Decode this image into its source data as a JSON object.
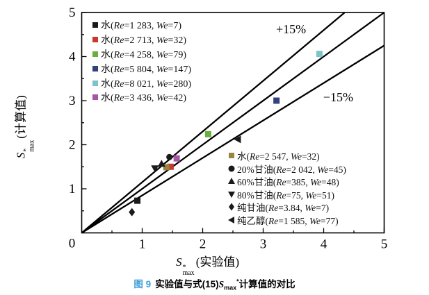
{
  "figure": {
    "caption": {
      "tag": "图 9",
      "tag_color": "#3f9ed8",
      "pre": "实验值与式(15)",
      "s_base": "S",
      "s_sub": "max",
      "s_sup": "*",
      "post": "计算值的对比"
    }
  },
  "chart_data": {
    "type": "scatter",
    "title": "",
    "xlabel": {
      "s_base": "S",
      "s_sup": "*",
      "s_sub": "max",
      "text": "(实验值)"
    },
    "ylabel": {
      "s_base": "S",
      "s_sup": "*",
      "s_sub": "max",
      "text": "(计算值)"
    },
    "xlim": [
      0,
      5
    ],
    "ylim": [
      0,
      5
    ],
    "x_ticks": [
      0,
      1,
      2,
      3,
      4,
      5
    ],
    "y_ticks": [
      0,
      1,
      2,
      3,
      4,
      5
    ],
    "minor_tick_step": 0.5,
    "grid": false,
    "axis_color": "#000000",
    "legend_positions": [
      "top-left",
      "bottom-right"
    ],
    "reference_lines": [
      {
        "name": "upper-bound",
        "slope": 1.15,
        "label": "+15%",
        "label_at": [
          3.46,
          4.62
        ]
      },
      {
        "name": "identity",
        "slope": 1.0,
        "label": "",
        "label_at": null
      },
      {
        "name": "lower-bound",
        "slope": 0.85,
        "label": "−15%",
        "label_at": [
          4.24,
          3.08
        ]
      }
    ],
    "series": [
      {
        "name": "水",
        "re": "1 283",
        "we": "7",
        "marker": "square",
        "color": "#1a1a1a",
        "legend": "top-left",
        "points": [
          [
            0.92,
            0.73
          ]
        ]
      },
      {
        "name": "水",
        "re": "2 713",
        "we": "32",
        "marker": "square",
        "color": "#c6392e",
        "legend": "top-left",
        "points": [
          [
            1.47,
            1.5
          ]
        ]
      },
      {
        "name": "水",
        "re": "4 258",
        "we": "79",
        "marker": "square",
        "color": "#6dad3e",
        "legend": "top-left",
        "points": [
          [
            2.09,
            2.24
          ]
        ]
      },
      {
        "name": "水",
        "re": "5 804",
        "we": "147",
        "marker": "square",
        "color": "#32417e",
        "legend": "top-left",
        "points": [
          [
            3.22,
            3.0
          ]
        ]
      },
      {
        "name": "水",
        "re": "8 021",
        "we": "280",
        "marker": "square",
        "color": "#7cc4c9",
        "legend": "top-left",
        "points": [
          [
            3.93,
            4.06
          ]
        ]
      },
      {
        "name": "水",
        "re": "3 436",
        "we": "42",
        "marker": "square",
        "color": "#a457a3",
        "legend": "top-left",
        "points": [
          [
            1.57,
            1.69
          ]
        ]
      },
      {
        "name": "水",
        "re": "2 547",
        "we": "32",
        "marker": "square",
        "color": "#998441",
        "legend": "bottom-right",
        "points": [
          [
            1.4,
            1.49
          ]
        ]
      },
      {
        "name": "20%甘油",
        "re": "2 042",
        "we": "45",
        "marker": "circle",
        "color": "#1a1a1a",
        "legend": "bottom-right",
        "points": [
          [
            1.45,
            1.72
          ]
        ]
      },
      {
        "name": "60%甘油",
        "re": "385",
        "we": "48",
        "marker": "triangle-up",
        "color": "#1a1a1a",
        "legend": "bottom-right",
        "points": [
          [
            1.32,
            1.57
          ]
        ]
      },
      {
        "name": "80%甘油",
        "re": "75",
        "we": "51",
        "marker": "triangle-down",
        "color": "#1a1a1a",
        "legend": "bottom-right",
        "points": [
          [
            1.21,
            1.46
          ]
        ]
      },
      {
        "name": "纯甘油",
        "re": "3.84",
        "we": "7",
        "marker": "diamond",
        "color": "#1a1a1a",
        "legend": "bottom-right",
        "points": [
          [
            0.83,
            0.47
          ]
        ]
      },
      {
        "name": "纯乙醇",
        "re": "1 585",
        "we": "77",
        "marker": "triangle-left",
        "color": "#1a1a1a",
        "legend": "bottom-right",
        "points": [
          [
            2.58,
            2.12
          ]
        ]
      }
    ]
  }
}
